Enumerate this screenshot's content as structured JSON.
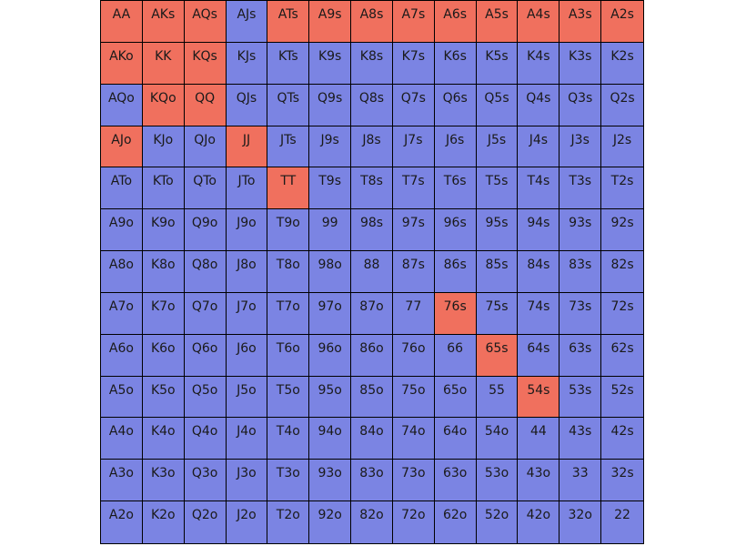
{
  "colors": {
    "selected": "#f0705e",
    "unselected": "#7b84e3"
  },
  "chart_data": {
    "type": "heatmap",
    "title": "",
    "rows": 13,
    "cols": 13,
    "cells": [
      [
        "AA",
        "AKs",
        "AQs",
        "AJs",
        "ATs",
        "A9s",
        "A8s",
        "A7s",
        "A6s",
        "A5s",
        "A4s",
        "A3s",
        "A2s"
      ],
      [
        "AKo",
        "KK",
        "KQs",
        "KJs",
        "KTs",
        "K9s",
        "K8s",
        "K7s",
        "K6s",
        "K5s",
        "K4s",
        "K3s",
        "K2s"
      ],
      [
        "AQo",
        "KQo",
        "QQ",
        "QJs",
        "QTs",
        "Q9s",
        "Q8s",
        "Q7s",
        "Q6s",
        "Q5s",
        "Q4s",
        "Q3s",
        "Q2s"
      ],
      [
        "AJo",
        "KJo",
        "QJo",
        "JJ",
        "JTs",
        "J9s",
        "J8s",
        "J7s",
        "J6s",
        "J5s",
        "J4s",
        "J3s",
        "J2s"
      ],
      [
        "ATo",
        "KTo",
        "QTo",
        "JTo",
        "TT",
        "T9s",
        "T8s",
        "T7s",
        "T6s",
        "T5s",
        "T4s",
        "T3s",
        "T2s"
      ],
      [
        "A9o",
        "K9o",
        "Q9o",
        "J9o",
        "T9o",
        "99",
        "98s",
        "97s",
        "96s",
        "95s",
        "94s",
        "93s",
        "92s"
      ],
      [
        "A8o",
        "K8o",
        "Q8o",
        "J8o",
        "T8o",
        "98o",
        "88",
        "87s",
        "86s",
        "85s",
        "84s",
        "83s",
        "82s"
      ],
      [
        "A7o",
        "K7o",
        "Q7o",
        "J7o",
        "T7o",
        "97o",
        "87o",
        "77",
        "76s",
        "75s",
        "74s",
        "73s",
        "72s"
      ],
      [
        "A6o",
        "K6o",
        "Q6o",
        "J6o",
        "T6o",
        "96o",
        "86o",
        "76o",
        "66",
        "65s",
        "64s",
        "63s",
        "62s"
      ],
      [
        "A5o",
        "K5o",
        "Q5o",
        "J5o",
        "T5o",
        "95o",
        "85o",
        "75o",
        "65o",
        "55",
        "54s",
        "53s",
        "52s"
      ],
      [
        "A4o",
        "K4o",
        "Q4o",
        "J4o",
        "T4o",
        "94o",
        "84o",
        "74o",
        "64o",
        "54o",
        "44",
        "43s",
        "42s"
      ],
      [
        "A3o",
        "K3o",
        "Q3o",
        "J3o",
        "T3o",
        "93o",
        "83o",
        "73o",
        "63o",
        "53o",
        "43o",
        "33",
        "32s"
      ],
      [
        "A2o",
        "K2o",
        "Q2o",
        "J2o",
        "T2o",
        "92o",
        "82o",
        "72o",
        "62o",
        "52o",
        "42o",
        "32o",
        "22"
      ]
    ],
    "selected": [
      [
        1,
        1,
        1,
        0,
        1,
        1,
        1,
        1,
        1,
        1,
        1,
        1,
        1
      ],
      [
        1,
        1,
        1,
        0,
        0,
        0,
        0,
        0,
        0,
        0,
        0,
        0,
        0
      ],
      [
        0,
        1,
        1,
        0,
        0,
        0,
        0,
        0,
        0,
        0,
        0,
        0,
        0
      ],
      [
        1,
        0,
        0,
        1,
        0,
        0,
        0,
        0,
        0,
        0,
        0,
        0,
        0
      ],
      [
        0,
        0,
        0,
        0,
        1,
        0,
        0,
        0,
        0,
        0,
        0,
        0,
        0
      ],
      [
        0,
        0,
        0,
        0,
        0,
        0,
        0,
        0,
        0,
        0,
        0,
        0,
        0
      ],
      [
        0,
        0,
        0,
        0,
        0,
        0,
        0,
        0,
        0,
        0,
        0,
        0,
        0
      ],
      [
        0,
        0,
        0,
        0,
        0,
        0,
        0,
        0,
        1,
        0,
        0,
        0,
        0
      ],
      [
        0,
        0,
        0,
        0,
        0,
        0,
        0,
        0,
        0,
        1,
        0,
        0,
        0
      ],
      [
        0,
        0,
        0,
        0,
        0,
        0,
        0,
        0,
        0,
        0,
        1,
        0,
        0
      ],
      [
        0,
        0,
        0,
        0,
        0,
        0,
        0,
        0,
        0,
        0,
        0,
        0,
        0
      ],
      [
        0,
        0,
        0,
        0,
        0,
        0,
        0,
        0,
        0,
        0,
        0,
        0,
        0
      ],
      [
        0,
        0,
        0,
        0,
        0,
        0,
        0,
        0,
        0,
        0,
        0,
        0,
        0
      ]
    ]
  }
}
